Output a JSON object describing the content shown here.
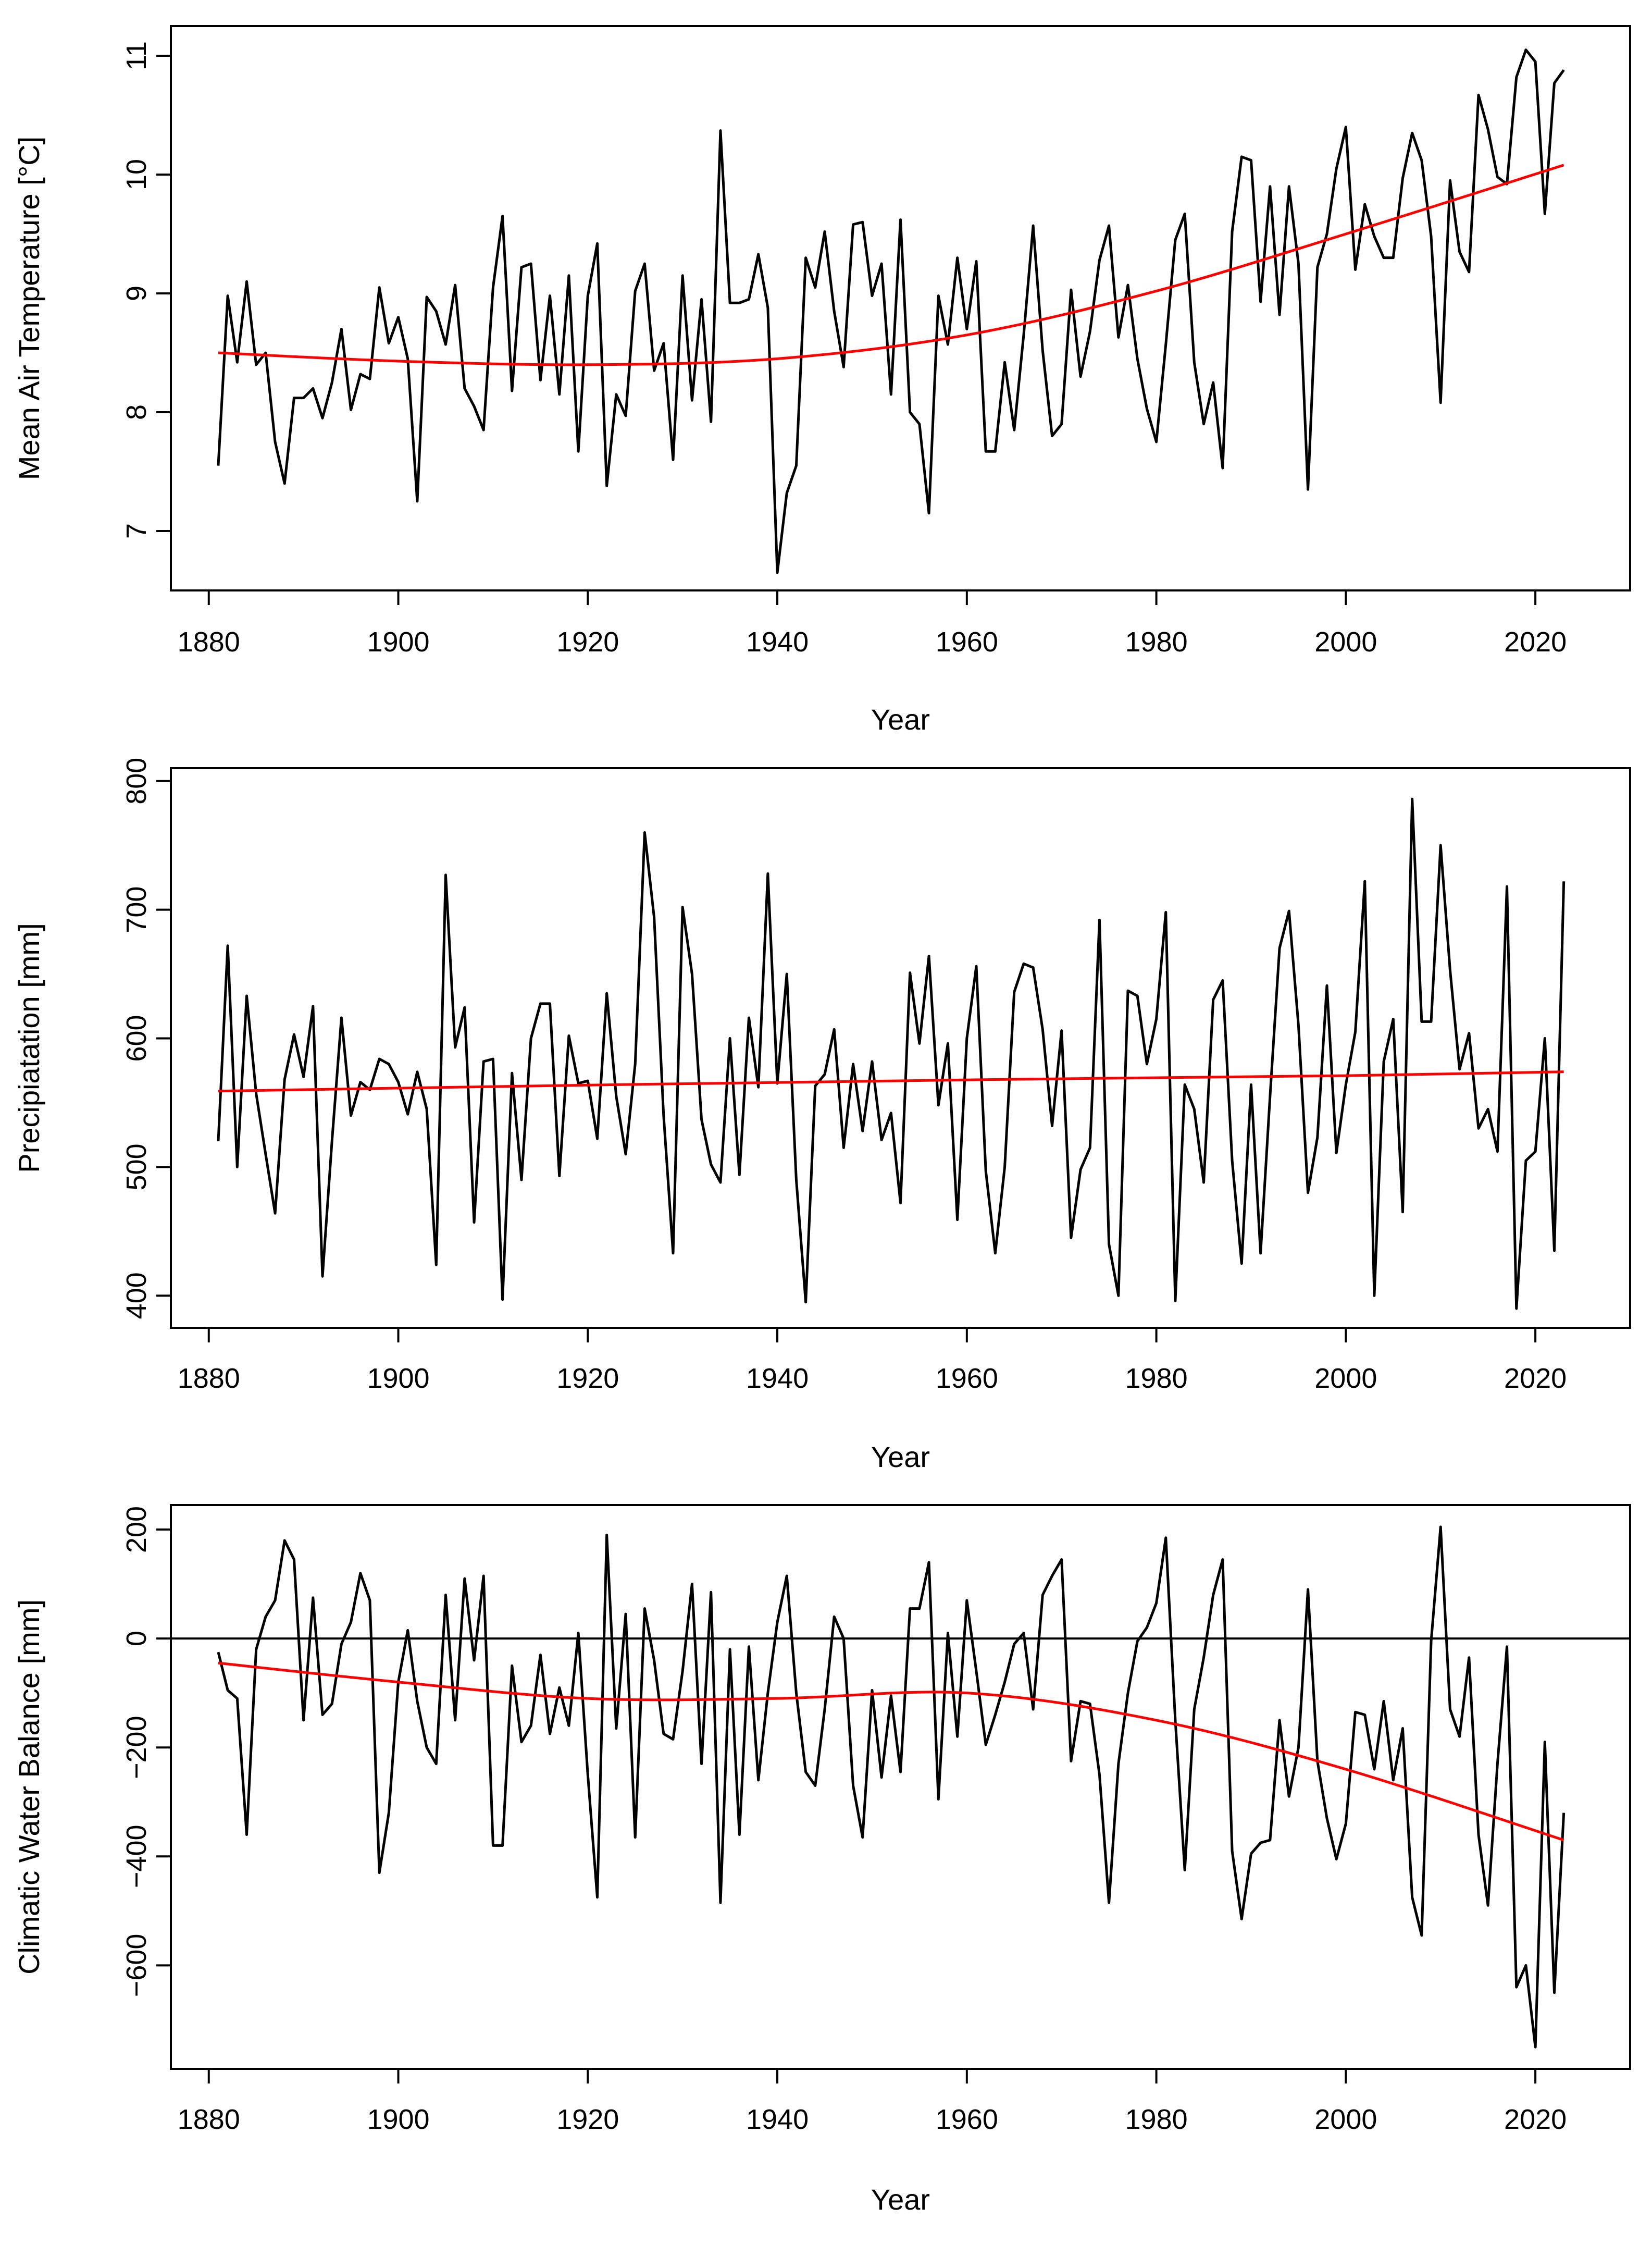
{
  "chart_data": [
    {
      "type": "line",
      "title": "",
      "xlabel": "Year",
      "ylabel": "Mean Air Temperature [°C]",
      "xlim": [
        1876,
        2030
      ],
      "ylim": [
        6.5,
        11.25
      ],
      "xticks": [
        1880,
        1900,
        1920,
        1940,
        1960,
        1980,
        2000,
        2020
      ],
      "yticks": [
        7,
        8,
        9,
        10,
        11
      ],
      "grid": false,
      "legend": "none",
      "series": [
        {
          "color": "#000000",
          "x_start": 1881,
          "values": [
            7.55,
            8.98,
            8.42,
            9.1,
            8.4,
            8.5,
            7.75,
            7.4,
            8.12,
            8.12,
            8.2,
            7.95,
            8.25,
            8.7,
            8.02,
            8.32,
            8.28,
            9.05,
            8.58,
            8.8,
            8.45,
            7.25,
            8.97,
            8.85,
            8.57,
            9.07,
            8.2,
            8.05,
            7.85,
            9.05,
            9.65,
            8.18,
            9.22,
            9.25,
            8.27,
            8.98,
            8.15,
            9.15,
            7.67,
            8.98,
            9.42,
            7.38,
            8.15,
            7.97,
            9.02,
            9.25,
            8.35,
            8.58,
            7.6,
            9.15,
            8.1,
            8.95,
            7.92,
            10.37,
            8.92,
            8.92,
            8.95,
            9.33,
            8.88,
            6.65,
            7.32,
            7.55,
            9.3,
            9.05,
            9.52,
            8.85,
            8.38,
            9.58,
            9.6,
            8.98,
            9.25,
            8.15,
            9.62,
            8.0,
            7.9,
            7.15,
            8.98,
            8.57,
            9.3,
            8.7,
            9.27,
            7.67,
            7.67,
            8.42,
            7.85,
            8.65,
            9.57,
            8.52,
            7.8,
            7.9,
            9.03,
            8.3,
            8.68,
            9.28,
            9.57,
            8.63,
            9.07,
            8.45,
            8.03,
            7.75,
            8.57,
            9.45,
            9.67,
            8.42,
            7.9,
            8.25,
            7.53,
            9.52,
            10.15,
            10.12,
            8.93,
            9.9,
            8.82,
            9.9,
            9.25,
            7.35,
            9.22,
            9.5,
            10.05,
            10.4,
            9.2,
            9.75,
            9.48,
            9.3,
            9.3,
            9.97,
            10.35,
            10.12,
            9.48,
            8.08,
            9.95,
            9.35,
            9.18,
            10.67,
            10.38,
            9.98,
            9.92,
            10.82,
            11.05,
            10.95,
            9.67,
            10.77,
            10.88
          ]
        },
        {
          "color": "#ff0000",
          "x": [
            1881,
            1900,
            1920,
            1940,
            1960,
            1980,
            2000,
            2023
          ],
          "values": [
            8.5,
            8.43,
            8.4,
            8.45,
            8.65,
            9.02,
            9.5,
            10.08
          ]
        }
      ]
    },
    {
      "type": "line",
      "title": "",
      "xlabel": "Year",
      "ylabel": "Precipiatation [mm]",
      "xlim": [
        1876,
        2030
      ],
      "ylim": [
        375,
        810
      ],
      "xticks": [
        1880,
        1900,
        1920,
        1940,
        1960,
        1980,
        2000,
        2020
      ],
      "yticks": [
        400,
        500,
        600,
        700,
        800
      ],
      "grid": false,
      "legend": "none",
      "series": [
        {
          "color": "#000000",
          "x_start": 1881,
          "values": [
            520,
            672,
            500,
            633,
            557,
            510,
            464,
            568,
            603,
            570,
            625,
            415,
            520,
            616,
            540,
            566,
            560,
            584,
            580,
            566,
            541,
            574,
            545,
            424,
            727,
            593,
            624,
            457,
            582,
            584,
            397,
            573,
            490,
            600,
            627,
            627,
            493,
            602,
            565,
            567,
            522,
            635,
            555,
            510,
            580,
            760,
            694,
            540,
            433,
            702,
            650,
            537,
            502,
            488,
            600,
            494,
            616,
            562,
            728,
            565,
            650,
            490,
            395,
            563,
            572,
            607,
            515,
            580,
            528,
            582,
            521,
            542,
            472,
            651,
            596,
            664,
            548,
            596,
            459,
            600,
            656,
            497,
            433,
            500,
            636,
            658,
            655,
            607,
            532,
            606,
            445,
            498,
            515,
            692,
            440,
            400,
            637,
            633,
            580,
            615,
            698,
            396,
            564,
            545,
            488,
            630,
            645,
            505,
            425,
            564,
            433,
            555,
            670,
            699,
            610,
            480,
            523,
            641,
            511,
            564,
            605,
            722,
            400,
            582,
            615,
            465,
            786,
            613,
            613,
            750,
            653,
            576,
            604,
            530,
            545,
            512,
            718,
            390,
            505,
            512,
            600,
            435,
            722
          ]
        },
        {
          "color": "#ff0000",
          "x": [
            1881,
            1923,
            1963,
            2000,
            2023
          ],
          "values": [
            559,
            564,
            568,
            571,
            574
          ]
        }
      ]
    },
    {
      "type": "line",
      "title": "",
      "xlabel": "Year",
      "ylabel": "Climatic Water Balance [mm]",
      "xlim": [
        1876,
        2030
      ],
      "ylim": [
        -790,
        245
      ],
      "xticks": [
        1880,
        1900,
        1920,
        1940,
        1960,
        1980,
        2000,
        2020
      ],
      "yticks": [
        -600,
        -400,
        -200,
        0,
        200
      ],
      "reference_line": 0,
      "grid": false,
      "legend": "none",
      "series": [
        {
          "color": "#000000",
          "x_start": 1881,
          "values": [
            -25,
            -95,
            -110,
            -360,
            -20,
            40,
            70,
            180,
            145,
            -150,
            75,
            -140,
            -120,
            -10,
            30,
            120,
            70,
            -430,
            -320,
            -80,
            15,
            -115,
            -200,
            -230,
            80,
            -150,
            110,
            -40,
            115,
            -380,
            -380,
            -50,
            -190,
            -160,
            -30,
            -175,
            -90,
            -160,
            10,
            -250,
            -475,
            190,
            -165,
            45,
            -365,
            55,
            -40,
            -175,
            -185,
            -60,
            100,
            -230,
            85,
            -485,
            -20,
            -360,
            -15,
            -260,
            -100,
            30,
            115,
            -100,
            -245,
            -270,
            -130,
            40,
            0,
            -270,
            -365,
            -95,
            -255,
            -105,
            -245,
            55,
            55,
            140,
            -295,
            10,
            -180,
            70,
            -60,
            -195,
            -140,
            -80,
            -10,
            10,
            -130,
            80,
            115,
            145,
            -225,
            -115,
            -120,
            -250,
            -485,
            -230,
            -100,
            -5,
            20,
            65,
            185,
            -150,
            -425,
            -130,
            -35,
            80,
            145,
            -390,
            -515,
            -395,
            -375,
            -370,
            -150,
            -290,
            -200,
            90,
            -225,
            -330,
            -405,
            -340,
            -135,
            -140,
            -240,
            -115,
            -260,
            -165,
            -475,
            -545,
            -5,
            205,
            -130,
            -180,
            -35,
            -360,
            -490,
            -230,
            -15,
            -640,
            -600,
            -750,
            -190,
            -650,
            -320
          ]
        },
        {
          "color": "#ff0000",
          "x": [
            1881,
            1900,
            1920,
            1940,
            1960,
            1980,
            2000,
            2023
          ],
          "values": [
            -45,
            -80,
            -110,
            -110,
            -100,
            -150,
            -240,
            -370
          ]
        }
      ]
    }
  ]
}
